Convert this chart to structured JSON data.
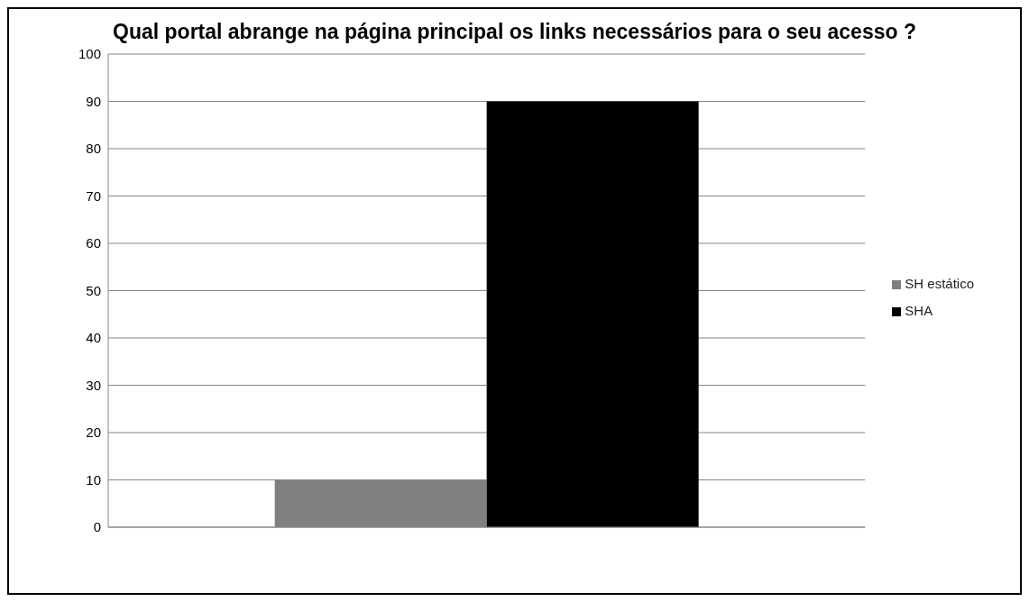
{
  "chart_data": {
    "type": "bar",
    "title": "Qual portal abrange na página principal os links necessários para o seu acesso ?",
    "categories": [
      null
    ],
    "series": [
      {
        "name": "SH estático",
        "color": "#808080",
        "values": [
          10
        ]
      },
      {
        "name": "SHA",
        "color": "#000000",
        "values": [
          90
        ]
      }
    ],
    "ylim": [
      0,
      100
    ],
    "yticks": [
      0,
      10,
      20,
      30,
      40,
      50,
      60,
      70,
      80,
      90,
      100
    ],
    "grid": "y",
    "legend": "right"
  }
}
